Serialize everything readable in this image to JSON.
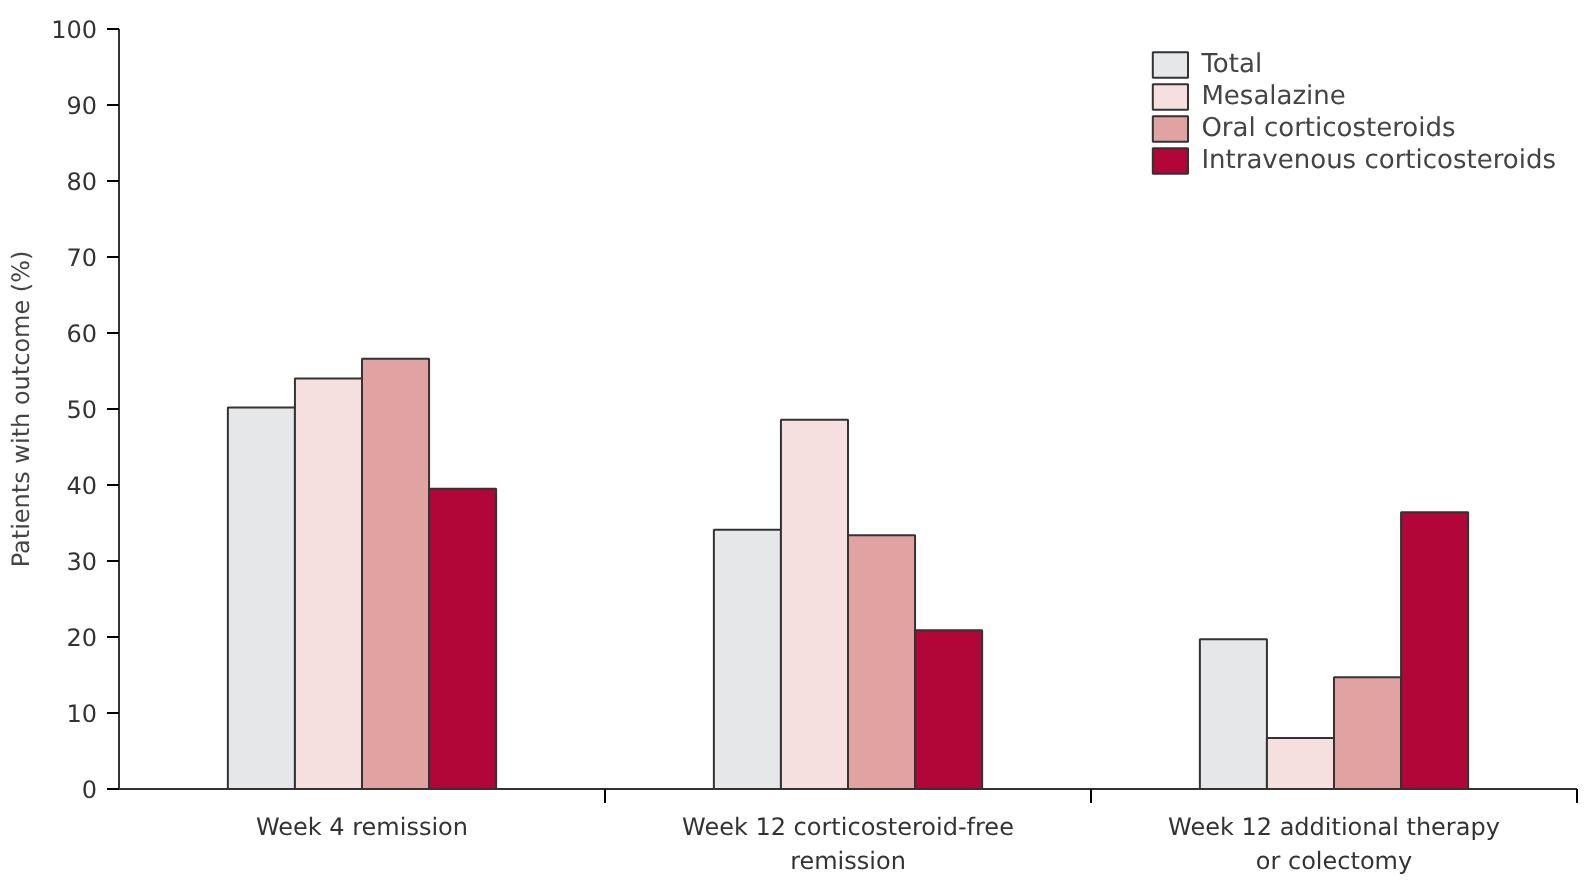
{
  "chart_data": {
    "type": "bar",
    "ylabel": "Patients with outcome (%)",
    "categories": [
      "Week 4 remission",
      "Week 12 corticosteroid-free remission",
      "Week 12 additional therapy or colectomy"
    ],
    "series": [
      {
        "name": "Total",
        "color": "#e6e7e9",
        "values": [
          50.2,
          34.1,
          19.7
        ]
      },
      {
        "name": "Mesalazine",
        "color": "#f5e0df",
        "values": [
          54.0,
          48.6,
          6.7
        ]
      },
      {
        "name": "Oral corticosteroids",
        "color": "#e0a3a2",
        "values": [
          56.6,
          33.4,
          14.7
        ]
      },
      {
        "name": "Intravenous corticosteroids",
        "color": "#b10637",
        "values": [
          39.5,
          20.9,
          36.4
        ]
      }
    ],
    "ylim": [
      0,
      100
    ],
    "yticks": [
      0,
      10,
      20,
      30,
      40,
      50,
      60,
      70,
      80,
      90,
      100
    ],
    "grid": false,
    "legend": "top right"
  }
}
